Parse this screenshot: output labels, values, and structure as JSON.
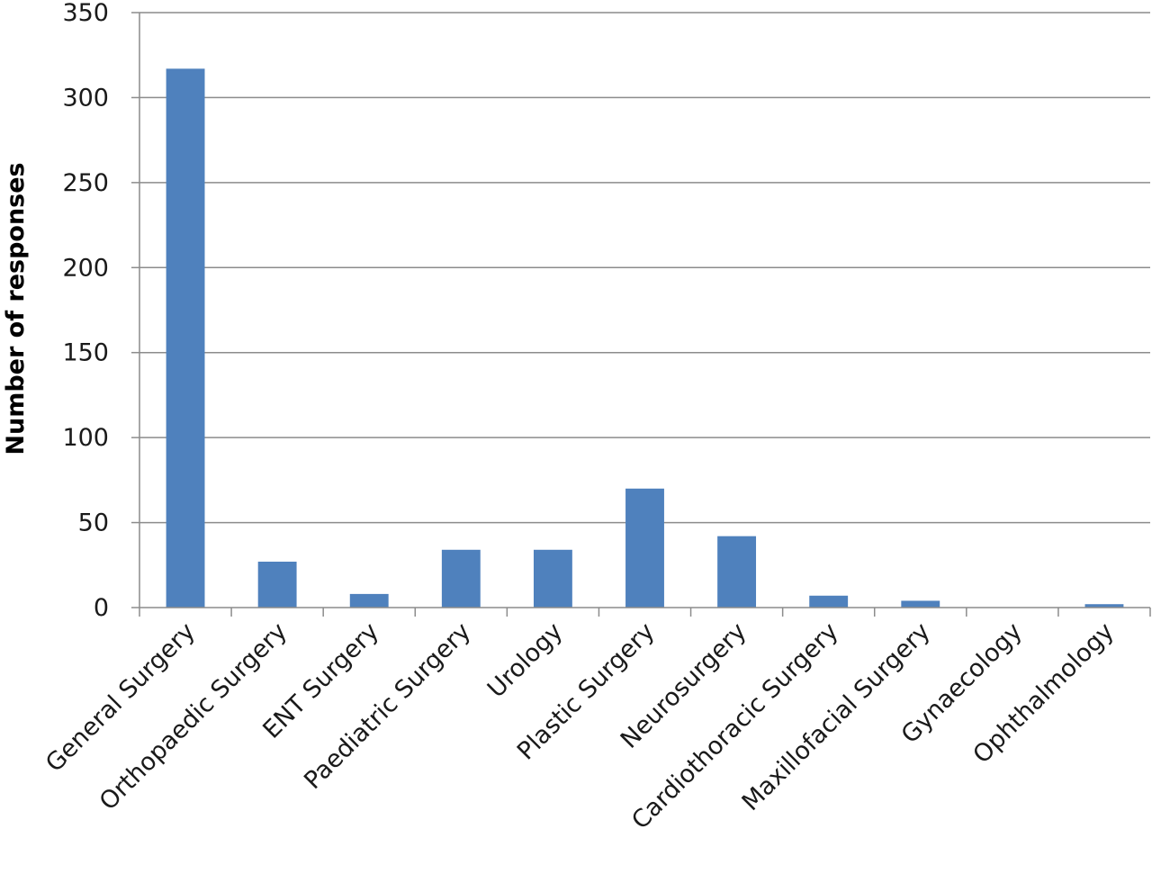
{
  "chart_data": {
    "type": "bar",
    "title": "",
    "xlabel": "",
    "ylabel": "Number of responses",
    "ylim": [
      0,
      350
    ],
    "yticks": [
      0,
      50,
      100,
      150,
      200,
      250,
      300,
      350
    ],
    "grid": true,
    "legend": "none",
    "bar_color": "#4f81bd",
    "categories": [
      "General Surgery",
      "Orthopaedic Surgery",
      "ENT Surgery",
      "Paediatric Surgery",
      "Urology",
      "Plastic Surgery",
      "Neurosurgery",
      "Cardiothoracic Surgery",
      "Maxillofacial Surgery",
      "Gynaecology",
      "Ophthalmology"
    ],
    "values": [
      317,
      27,
      8,
      34,
      34,
      70,
      42,
      7,
      4,
      0,
      2
    ]
  }
}
